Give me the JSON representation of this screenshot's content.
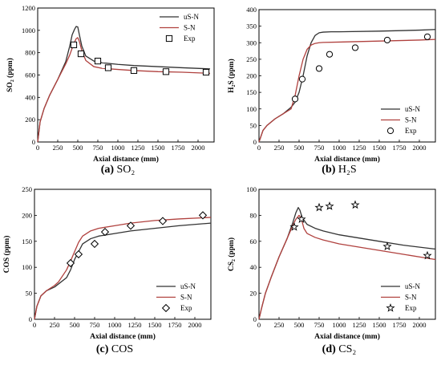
{
  "chart_data": [
    {
      "id": "a",
      "type": "line",
      "caption_letter": "(a)",
      "caption_text": "SO₂",
      "xlabel": "Axial distance (mm)",
      "ylabel": "SO₂ (ppm)",
      "xlim": [
        0,
        2200
      ],
      "ylim": [
        0,
        1200
      ],
      "xticks": [
        0,
        250,
        500,
        750,
        1000,
        1250,
        1500,
        1750,
        2000
      ],
      "yticks": [
        0,
        200,
        400,
        600,
        800,
        1000,
        1200
      ],
      "legend_position": "top-right",
      "series": [
        {
          "name": "uS-N",
          "color": "#333333",
          "marker": "none",
          "x": [
            0,
            30,
            80,
            150,
            250,
            350,
            400,
            430,
            460,
            480,
            500,
            520,
            550,
            600,
            700,
            800,
            1000,
            1200,
            1500,
            1800,
            2150
          ],
          "y": [
            0,
            180,
            300,
            420,
            560,
            720,
            860,
            960,
            1010,
            1035,
            1030,
            960,
            860,
            770,
            725,
            710,
            695,
            685,
            675,
            665,
            655
          ]
        },
        {
          "name": "S-N",
          "color": "#b0413e",
          "marker": "none",
          "x": [
            0,
            30,
            80,
            150,
            250,
            350,
            400,
            450,
            480,
            500,
            520,
            550,
            600,
            700,
            800,
            1000,
            1200,
            1500,
            1800,
            2150
          ],
          "y": [
            0,
            180,
            300,
            420,
            560,
            700,
            780,
            880,
            925,
            935,
            900,
            820,
            730,
            675,
            660,
            650,
            640,
            630,
            625,
            615
          ]
        },
        {
          "name": "Exp",
          "color": "#000000",
          "marker": "square",
          "x": [
            450,
            540,
            750,
            880,
            1200,
            1600,
            2100
          ],
          "y": [
            870,
            790,
            725,
            665,
            640,
            630,
            625
          ]
        }
      ]
    },
    {
      "id": "b",
      "type": "line",
      "caption_letter": "(b)",
      "caption_text": "H₂S",
      "xlabel": "Axial distance (mm)",
      "ylabel": "H₂S (ppm)",
      "xlim": [
        0,
        2200
      ],
      "ylim": [
        0,
        400
      ],
      "xticks": [
        0,
        250,
        500,
        750,
        1000,
        1250,
        1500,
        1750,
        2000
      ],
      "yticks": [
        0,
        50,
        100,
        150,
        200,
        250,
        300,
        350,
        400
      ],
      "legend_position": "bottom-right",
      "series": [
        {
          "name": "uS-N",
          "color": "#333333",
          "marker": "none",
          "x": [
            0,
            50,
            100,
            200,
            300,
            400,
            450,
            500,
            550,
            600,
            650,
            700,
            750,
            800,
            900,
            1000,
            1500,
            2000,
            2200
          ],
          "y": [
            0,
            35,
            50,
            70,
            85,
            105,
            120,
            150,
            200,
            260,
            300,
            322,
            330,
            332,
            333,
            333,
            335,
            338,
            340
          ]
        },
        {
          "name": "S-N",
          "color": "#b0413e",
          "marker": "none",
          "x": [
            0,
            50,
            100,
            200,
            300,
            400,
            450,
            500,
            550,
            600,
            650,
            700,
            750,
            800,
            1000,
            1500,
            2000,
            2200
          ],
          "y": [
            0,
            35,
            50,
            70,
            85,
            100,
            140,
            200,
            250,
            280,
            293,
            298,
            300,
            301,
            302,
            305,
            308,
            310
          ]
        },
        {
          "name": "Exp",
          "color": "#000000",
          "marker": "circle",
          "x": [
            450,
            540,
            750,
            880,
            1200,
            1600,
            2100
          ],
          "y": [
            130,
            190,
            222,
            265,
            285,
            308,
            318
          ]
        }
      ]
    },
    {
      "id": "c",
      "type": "line",
      "caption_letter": "(c)",
      "caption_text": "COS",
      "xlabel": "Axial distance (mm)",
      "ylabel": "COS (ppm)",
      "xlim": [
        0,
        2200
      ],
      "ylim": [
        0,
        250
      ],
      "xticks": [
        0,
        250,
        500,
        750,
        1000,
        1250,
        1500,
        1750,
        2000
      ],
      "yticks": [
        0,
        50,
        100,
        150,
        200,
        250
      ],
      "legend_position": "bottom-right",
      "series": [
        {
          "name": "uS-N",
          "color": "#333333",
          "marker": "none",
          "x": [
            0,
            30,
            80,
            150,
            250,
            300,
            400,
            450,
            500,
            550,
            600,
            700,
            800,
            1000,
            1200,
            1500,
            1800,
            2200
          ],
          "y": [
            0,
            25,
            45,
            55,
            62,
            68,
            80,
            95,
            115,
            130,
            145,
            155,
            160,
            165,
            170,
            175,
            180,
            185
          ]
        },
        {
          "name": "S-N",
          "color": "#b0413e",
          "marker": "none",
          "x": [
            0,
            30,
            80,
            150,
            250,
            300,
            400,
            450,
            500,
            550,
            600,
            700,
            800,
            1000,
            1200,
            1500,
            1800,
            2200
          ],
          "y": [
            0,
            25,
            45,
            55,
            65,
            72,
            95,
            112,
            130,
            148,
            160,
            170,
            175,
            180,
            185,
            190,
            193,
            196
          ]
        },
        {
          "name": "Exp",
          "color": "#000000",
          "marker": "diamond",
          "x": [
            450,
            550,
            750,
            880,
            1200,
            1600,
            2100
          ],
          "y": [
            108,
            125,
            145,
            168,
            180,
            189,
            200
          ]
        }
      ]
    },
    {
      "id": "d",
      "type": "line",
      "caption_letter": "(d)",
      "caption_text": "CS₂",
      "xlabel": "Axial distance (mm)",
      "ylabel": "CS₂ (ppm)",
      "xlim": [
        0,
        2200
      ],
      "ylim": [
        0,
        100
      ],
      "xticks": [
        0,
        250,
        500,
        750,
        1000,
        1250,
        1500,
        1750,
        2000
      ],
      "yticks": [
        0,
        20,
        40,
        60,
        80,
        100
      ],
      "legend_position": "bottom-right",
      "series": [
        {
          "name": "uS-N",
          "color": "#333333",
          "marker": "none",
          "x": [
            0,
            30,
            80,
            150,
            250,
            350,
            420,
            460,
            490,
            510,
            540,
            600,
            700,
            800,
            1000,
            1200,
            1500,
            1800,
            2200
          ],
          "y": [
            0,
            8,
            20,
            32,
            48,
            62,
            74,
            82,
            86,
            84,
            78,
            73,
            70,
            68,
            65,
            63,
            60,
            57,
            54
          ]
        },
        {
          "name": "S-N",
          "color": "#b0413e",
          "marker": "none",
          "x": [
            0,
            30,
            80,
            150,
            250,
            350,
            420,
            460,
            500,
            530,
            560,
            600,
            700,
            800,
            1000,
            1200,
            1500,
            1800,
            2200
          ],
          "y": [
            0,
            8,
            20,
            32,
            48,
            62,
            72,
            77,
            80,
            77,
            70,
            66,
            63,
            61,
            58,
            56,
            53,
            50,
            46
          ]
        },
        {
          "name": "Exp",
          "color": "#000000",
          "marker": "star",
          "x": [
            440,
            530,
            750,
            880,
            1200,
            1600,
            2100
          ],
          "y": [
            71,
            77,
            86,
            87,
            88,
            56,
            49
          ]
        }
      ]
    }
  ]
}
